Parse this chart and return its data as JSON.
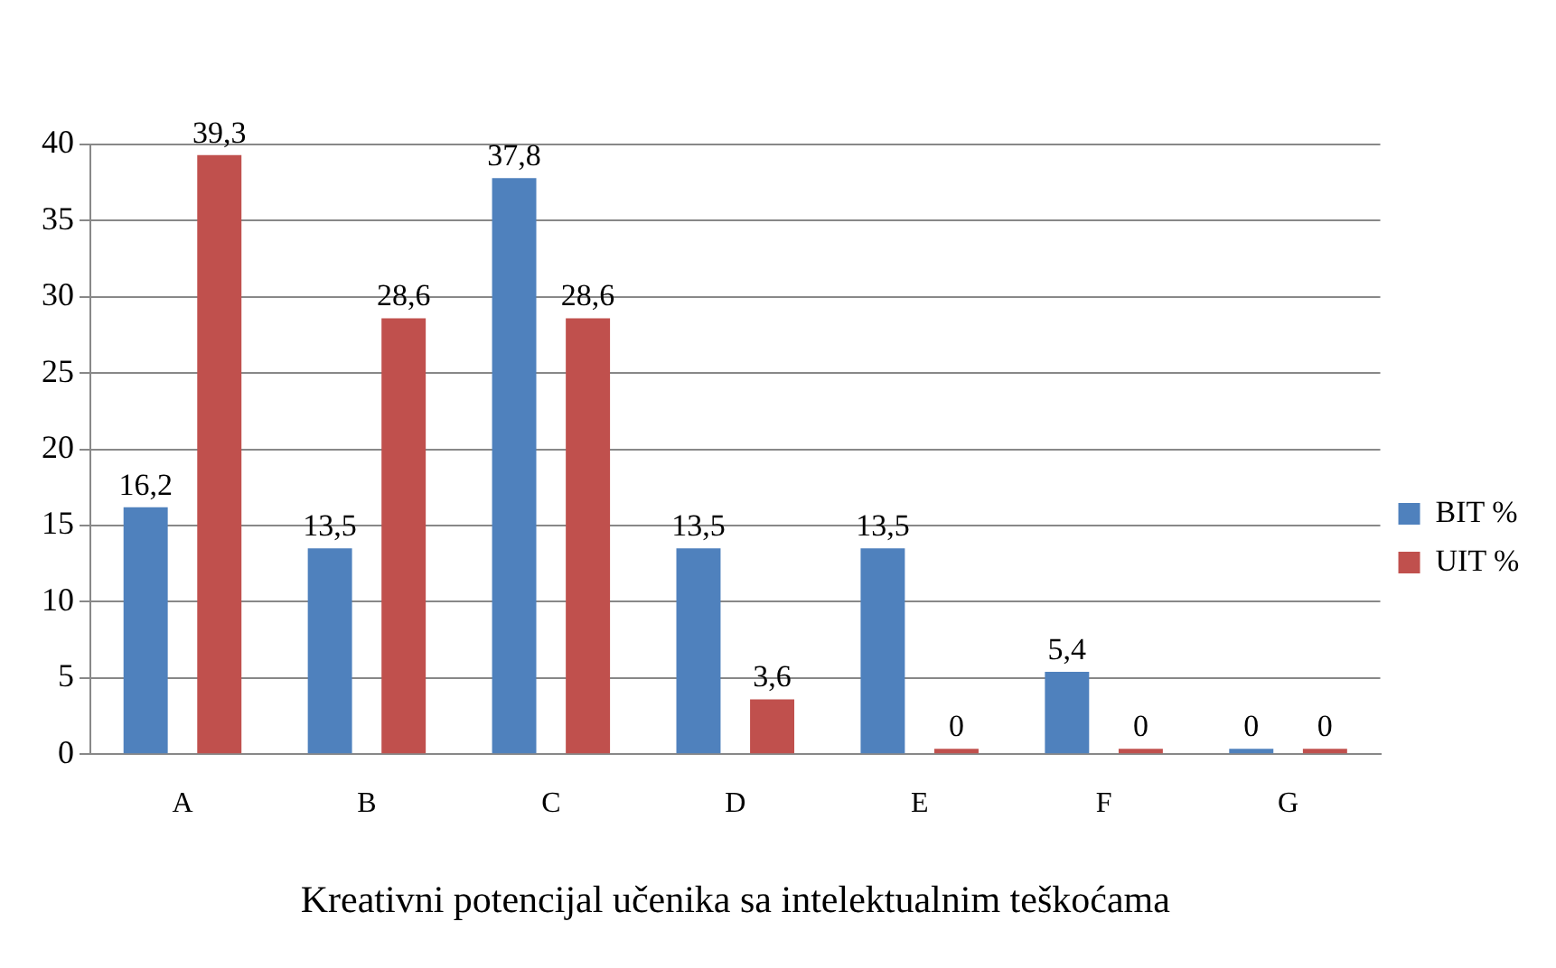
{
  "chart_data": {
    "type": "bar",
    "xlabel": "Kreativni potencijal učenika sa intelektualnim teškoćama",
    "categories": [
      "A",
      "B",
      "C",
      "D",
      "E",
      "F",
      "G"
    ],
    "series": [
      {
        "name": "BIT %",
        "color": "#4f81bd",
        "values": [
          16.2,
          13.5,
          37.8,
          13.5,
          13.5,
          5.4,
          0
        ],
        "value_labels": [
          "16,2",
          "13,5",
          "37,8",
          "13,5",
          "13,5",
          "5,4",
          "0"
        ]
      },
      {
        "name": "UIT %",
        "color": "#c0504d",
        "values": [
          39.3,
          28.6,
          28.6,
          3.6,
          0,
          0,
          0
        ],
        "value_labels": [
          "39,3",
          "28,6",
          "28,6",
          "3,6",
          "0",
          "0",
          "0"
        ]
      }
    ],
    "ylim": [
      0,
      40
    ],
    "yticks": [
      0,
      5,
      10,
      15,
      20,
      25,
      30,
      35,
      40
    ],
    "grid": "y",
    "legend": "right"
  }
}
